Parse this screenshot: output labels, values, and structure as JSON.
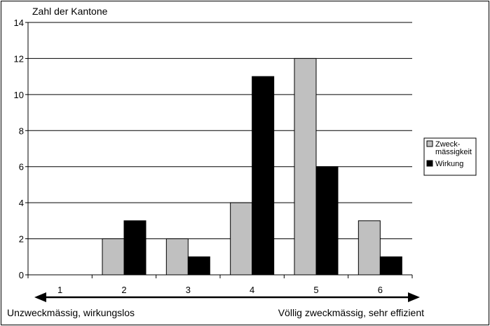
{
  "chart_data": {
    "type": "bar",
    "ylabel": "Zahl der Kantone",
    "categories": [
      "1",
      "2",
      "3",
      "4",
      "5",
      "6"
    ],
    "series": [
      {
        "name": "Zweck-mässigkeit",
        "color": "#c0c0c0",
        "values": [
          0,
          2,
          2,
          4,
          12,
          3
        ]
      },
      {
        "name": "Wirkung",
        "color": "#000000",
        "values": [
          0,
          3,
          1,
          11,
          6,
          1
        ]
      }
    ],
    "ylim": [
      0,
      14
    ],
    "yticks": [
      "0",
      "2",
      "4",
      "6",
      "8",
      "10",
      "12",
      "14"
    ],
    "grid": true,
    "legend": {
      "position": "right",
      "items": [
        {
          "lines": [
            "Zweck-",
            "mässigkeit"
          ],
          "color": "#c0c0c0"
        },
        {
          "lines": [
            "Wirkung"
          ],
          "color": "#000000"
        }
      ]
    },
    "scale_left_label": "Unzweckmässig, wirkungslos",
    "scale_right_label": "Völlig zweckmässig, sehr effizient"
  }
}
